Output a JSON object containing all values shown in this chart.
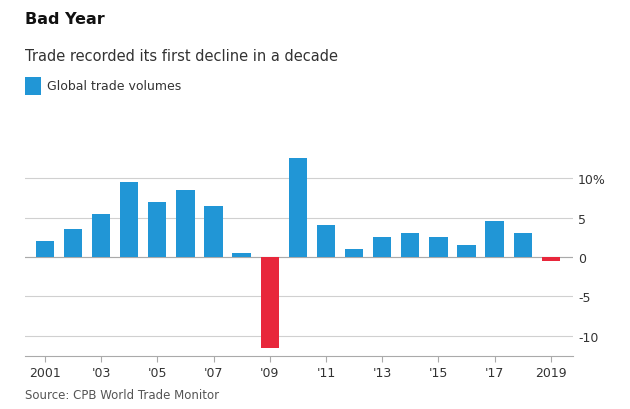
{
  "title": "Bad Year",
  "subtitle": "Trade recorded its first decline in a decade",
  "legend_label": "Global trade volumes",
  "source": "Source: CPB World Trade Monitor",
  "years": [
    2001,
    2002,
    2003,
    2004,
    2005,
    2006,
    2007,
    2008,
    2009,
    2010,
    2011,
    2012,
    2013,
    2014,
    2015,
    2016,
    2017,
    2018,
    2019
  ],
  "values": [
    2.0,
    3.5,
    5.5,
    9.5,
    7.0,
    8.5,
    6.5,
    0.5,
    -11.5,
    12.5,
    4.0,
    1.0,
    2.5,
    3.0,
    2.5,
    1.5,
    4.5,
    3.0,
    -0.5
  ],
  "colors": [
    "#2196d6",
    "#2196d6",
    "#2196d6",
    "#2196d6",
    "#2196d6",
    "#2196d6",
    "#2196d6",
    "#2196d6",
    "#e8273b",
    "#2196d6",
    "#2196d6",
    "#2196d6",
    "#2196d6",
    "#2196d6",
    "#2196d6",
    "#2196d6",
    "#2196d6",
    "#2196d6",
    "#e8273b"
  ],
  "blue_color": "#2196d6",
  "red_color": "#e8273b",
  "ylim": [
    -12.5,
    14.5
  ],
  "yticks": [
    -10,
    -5,
    0,
    5,
    10
  ],
  "ytick_labels": [
    "-10",
    "-5",
    "0",
    "5",
    "10%"
  ],
  "xtick_years": [
    2001,
    2003,
    2005,
    2007,
    2009,
    2011,
    2013,
    2015,
    2017,
    2019
  ],
  "xtick_labels": [
    "2001",
    "'03",
    "'05",
    "'07",
    "'09",
    "'11",
    "'13",
    "'15",
    "'17",
    "2019"
  ],
  "background_color": "#ffffff",
  "grid_color": "#d0d0d0",
  "title_fontsize": 11.5,
  "subtitle_fontsize": 10.5,
  "legend_fontsize": 9,
  "source_fontsize": 8.5,
  "bar_width": 0.65
}
